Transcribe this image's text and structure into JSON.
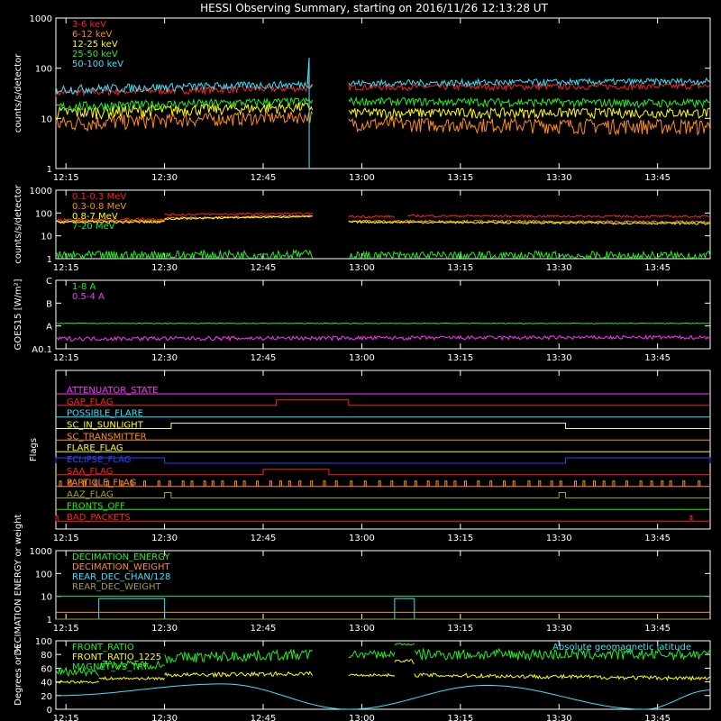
{
  "title": "HESSI Observing Summary, starting on 2016/11/26 12:13:28 UT",
  "time_ticks": [
    "12:15",
    "12:30",
    "12:45",
    "13:00",
    "13:15",
    "13:30",
    "13:45"
  ],
  "colors": {
    "red": "#ff2020",
    "orange": "#ff8c1a",
    "yellow": "#ffff00",
    "green": "#22ee22",
    "cyan": "#33e6ff",
    "magenta": "#ff33ff",
    "blue": "#2244ff",
    "olive": "#a0a020",
    "white": "#ffffff"
  },
  "chart_data": [
    {
      "type": "line",
      "id": "xray",
      "ylabel": "counts/s/detector",
      "yscale": "log",
      "ylim": [
        1,
        1000
      ],
      "yticks": [
        "1",
        "10",
        "100",
        "1000"
      ],
      "time_range": [
        "12:13:28",
        "13:53"
      ],
      "series": [
        {
          "name": "3-6 keV",
          "color": "red",
          "segments": [
            [
              "12:13:28",
              "12:52:30",
              33,
              40,
              6
            ],
            [
              "12:58",
              "13:53",
              42,
              44,
              6
            ]
          ],
          "spike": [
            "12:52",
            70
          ]
        },
        {
          "name": "6-12 keV",
          "color": "orange",
          "segments": [
            [
              "12:13:28",
              "12:52:30",
              8,
              11,
              3
            ],
            [
              "12:58",
              "13:53",
              8,
              7,
              2.5
            ]
          ]
        },
        {
          "name": "12-25 keV",
          "color": "yellow",
          "segments": [
            [
              "12:13:28",
              "12:52:30",
              13,
              17,
              4
            ],
            [
              "12:58",
              "13:53",
              13,
              13,
              3
            ]
          ]
        },
        {
          "name": "25-50 keV",
          "color": "green",
          "segments": [
            [
              "12:13:28",
              "12:52:30",
              17,
              22,
              4
            ],
            [
              "12:58",
              "13:53",
              22,
              20,
              4
            ]
          ]
        },
        {
          "name": "50-100 keV",
          "color": "cyan",
          "segments": [
            [
              "12:13:28",
              "12:52:30",
              38,
              48,
              8
            ],
            [
              "12:58",
              "13:53",
              50,
              55,
              8
            ]
          ],
          "spike": [
            "12:52",
            160
          ]
        }
      ]
    },
    {
      "type": "line",
      "id": "gamma",
      "ylabel": "counts/s/detector",
      "yscale": "log",
      "ylim": [
        1,
        1000
      ],
      "yticks": [
        "1",
        "10",
        "100",
        "1000"
      ],
      "series": [
        {
          "name": "0.1-0.3 MeV",
          "color": "red",
          "segments": [
            [
              "12:13:28",
              "12:30",
              50,
              55,
              8
            ],
            [
              "12:30",
              "12:52:30",
              85,
              95,
              10
            ],
            [
              "12:58",
              "13:05",
              70,
              70,
              8
            ],
            [
              "13:07",
              "13:53",
              75,
              70,
              8
            ]
          ]
        },
        {
          "name": "0.3-0.8 MeV",
          "color": "orange",
          "segments": [
            [
              "12:13:28",
              "12:30",
              45,
              45,
              5
            ],
            [
              "12:30",
              "12:52:30",
              60,
              75,
              6
            ],
            [
              "12:58",
              "13:53",
              45,
              40,
              5
            ]
          ]
        },
        {
          "name": "0.8-7 MeV",
          "color": "yellow",
          "segments": [
            [
              "12:13:28",
              "12:30",
              40,
              40,
              5
            ],
            [
              "12:30",
              "12:52:30",
              55,
              70,
              5
            ],
            [
              "12:58",
              "13:53",
              40,
              35,
              4
            ]
          ]
        },
        {
          "name": "7-20 MeV",
          "color": "green",
          "segments": [
            [
              "12:13:28",
              "12:52:30",
              1.3,
              1.6,
              0.8
            ],
            [
              "12:58",
              "13:53",
              1.3,
              1.3,
              0.8
            ]
          ]
        }
      ]
    },
    {
      "type": "line",
      "id": "goes",
      "ylabel": "GOES15 [W/m²]",
      "yscale": "log",
      "ylim": [
        1e-08,
        1e-05
      ],
      "yticks": [
        "A0.1",
        "A",
        "B",
        "C"
      ],
      "series": [
        {
          "name": "1-8 A",
          "color": "green",
          "segments": [
            [
              "12:13:28",
              "13:53",
              1.3e-07,
              1.3e-07,
              5e-09
            ]
          ]
        },
        {
          "name": "0.5-4 A",
          "color": "magenta",
          "segments": [
            [
              "12:13:28",
              "13:53",
              2.8e-08,
              3.2e-08,
              6e-09
            ]
          ]
        }
      ]
    },
    {
      "type": "line",
      "id": "flags",
      "ylabel": "Flags",
      "flags": [
        {
          "name": "ATTENUATOR_STATE",
          "color": "magenta",
          "on": []
        },
        {
          "name": "GAP_FLAG",
          "color": "red",
          "on": [
            [
              "12:47",
              "12:58"
            ]
          ]
        },
        {
          "name": "POSSIBLE_FLARE",
          "color": "cyan",
          "on": []
        },
        {
          "name": "SC_IN_SUNLIGHT",
          "color": "yellow",
          "on": [
            [
              "12:31",
              "13:31"
            ]
          ]
        },
        {
          "name": "SC_TRANSMITTER",
          "color": "orange",
          "on": []
        },
        {
          "name": "FLARE_FLAG",
          "color": "yellow",
          "on": []
        },
        {
          "name": "ECLIPSE_FLAG",
          "color": "blue",
          "on": [
            [
              "12:13:28",
              "12:30"
            ],
            [
              "13:31",
              "13:53"
            ]
          ]
        },
        {
          "name": "SAA_FLAG",
          "color": "red",
          "on": [
            [
              "12:45",
              "12:55"
            ]
          ]
        },
        {
          "name": "PARTICLE_FLAG",
          "color": "orange",
          "on": []
        },
        {
          "name": "AAZ_FLAG",
          "color": "olive",
          "on": [
            [
              "12:30",
              "12:31"
            ],
            [
              "13:30",
              "13:31"
            ]
          ]
        },
        {
          "name": "FRONTS_OFF",
          "color": "green",
          "on": []
        },
        {
          "name": "BAD_PACKETS",
          "color": "red",
          "on": [
            [
              "12:13:28",
              "12:13:45"
            ],
            [
              "13:50",
              "13:50:15"
            ]
          ]
        }
      ]
    },
    {
      "type": "line",
      "id": "decimation",
      "ylabel": "DECIMATION ENERGY or weight",
      "yscale": "log",
      "ylim": [
        1,
        1000
      ],
      "yticks": [
        "1",
        "10",
        "100",
        "1000"
      ],
      "series": [
        {
          "name": "DECIMATION_ENERGY",
          "color": "green",
          "level": 10
        },
        {
          "name": "DECIMATION_WEIGHT",
          "color": "orange",
          "level": 2
        },
        {
          "name": "REAR_DEC_CHAN/128",
          "color": "cyan",
          "level": 1,
          "boxes": [
            [
              "12:20",
              "12:30"
            ],
            [
              "13:05",
              "13:08"
            ]
          ],
          "box_level": 8
        },
        {
          "name": "REAR_DEC_WEIGHT",
          "color": "olive",
          "level": 1
        }
      ]
    },
    {
      "type": "line",
      "id": "geo",
      "ylabel": "Degrees or %",
      "ylim": [
        0,
        100
      ],
      "yticks": [
        "0",
        "20",
        "40",
        "60",
        "80",
        "100"
      ],
      "annotation": "Absolute geomagnetic latitude",
      "series": [
        {
          "name": "FRONT_RATIO",
          "color": "green",
          "segments": [
            [
              "12:13:28",
              "12:20",
              55,
              55,
              6
            ],
            [
              "12:20",
              "12:30",
              65,
              65,
              6
            ],
            [
              "12:30",
              "12:52:30",
              75,
              80,
              8
            ],
            [
              "12:58",
              "13:05",
              80,
              80,
              6
            ],
            [
              "13:05",
              "13:08",
              95,
              95,
              2
            ],
            [
              "13:08",
              "13:53",
              80,
              80,
              8
            ]
          ]
        },
        {
          "name": "FRONT_RATIO_1225",
          "color": "yellow",
          "segments": [
            [
              "12:13:28",
              "12:20",
              40,
              40,
              2
            ],
            [
              "12:20",
              "12:30",
              45,
              45,
              2
            ],
            [
              "12:30",
              "12:52:30",
              50,
              52,
              3
            ],
            [
              "12:58",
              "13:05",
              50,
              50,
              2
            ],
            [
              "13:05",
              "13:08",
              70,
              70,
              3
            ],
            [
              "13:08",
              "13:53",
              50,
              45,
              3
            ]
          ]
        },
        {
          "name": "MAGNET_VS_TRT",
          "color": "green",
          "segments": []
        },
        {
          "name": "Absolute geomagnetic latitude",
          "color": "cyan",
          "curve": [
            [
              "12:13:28",
              20
            ],
            [
              "12:39",
              37
            ],
            [
              "12:58",
              0
            ],
            [
              "13:19",
              35
            ],
            [
              "13:43",
              0
            ],
            [
              "13:53",
              28
            ]
          ]
        }
      ]
    }
  ]
}
